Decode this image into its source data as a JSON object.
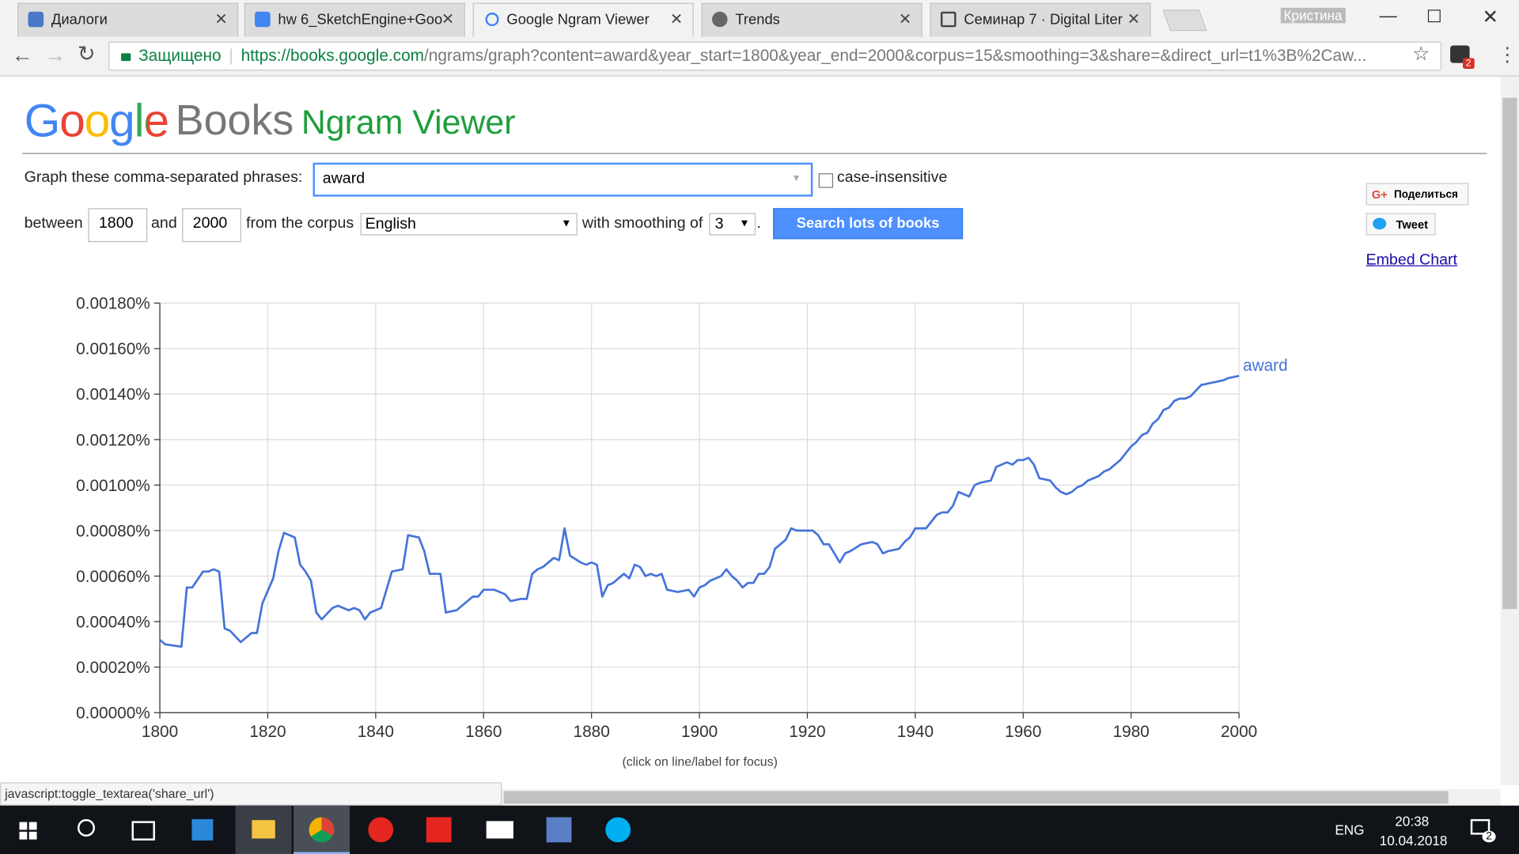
{
  "browser": {
    "tabs": [
      "Диалоги",
      "hw 6_SketchEngine+Goo",
      "Google Ngram Viewer",
      "Trends",
      "Семинар 7 · Digital Liter"
    ],
    "window_user": "Кристина",
    "secure_label": "Защищено",
    "url_host": "https://books.google.com",
    "url_rest": "/ngrams/graph?content=award&year_start=1800&year_end=2000&corpus=15&smoothing=3&share=&direct_url=t1%3B%2Caw...",
    "extension_badge": "2",
    "status_url": "javascript:toggle_textarea('share_url')"
  },
  "page": {
    "logo_google": "Google",
    "logo_books": "Books",
    "logo_ngram": "Ngram Viewer",
    "phrases_label": "Graph these comma-separated phrases:",
    "phrase": "award",
    "case_insensitive": "case-insensitive",
    "between": "between",
    "year_start": "1800",
    "and": "and",
    "year_end": "2000",
    "from_corpus": "from the corpus",
    "corpus": "English",
    "smoothing_label": "with smoothing of",
    "smoothing": "3",
    "period": ".",
    "search_button": "Search lots of books",
    "share_button": "Поделиться",
    "tweet_button": "Tweet",
    "embed_link": "Embed Chart",
    "hint": "(click on line/label for focus)"
  },
  "chart_data": {
    "type": "line",
    "x": [
      1800,
      1801,
      1804,
      1805,
      1806,
      1808,
      1809,
      1810,
      1811,
      1812,
      1813,
      1815,
      1817,
      1818,
      1819,
      1821,
      1822,
      1823,
      1825,
      1826,
      1827,
      1828,
      1829,
      1830,
      1832,
      1833,
      1835,
      1836,
      1837,
      1838,
      1839,
      1841,
      1842,
      1843,
      1845,
      1846,
      1848,
      1849,
      1850,
      1852,
      1853,
      1855,
      1857,
      1858,
      1859,
      1860,
      1862,
      1864,
      1865,
      1867,
      1868,
      1869,
      1870,
      1871,
      1872,
      1873,
      1874,
      1875,
      1876,
      1878,
      1879,
      1880,
      1881,
      1882,
      1883,
      1884,
      1886,
      1887,
      1888,
      1889,
      1890,
      1891,
      1892,
      1893,
      1894,
      1896,
      1898,
      1899,
      1900,
      1901,
      1902,
      1903,
      1904,
      1905,
      1906,
      1907,
      1908,
      1909,
      1910,
      1911,
      1912,
      1913,
      1914,
      1915,
      1916,
      1917,
      1918,
      1919,
      1920,
      1921,
      1922,
      1923,
      1924,
      1925,
      1926,
      1927,
      1928,
      1930,
      1932,
      1933,
      1934,
      1935,
      1937,
      1938,
      1939,
      1940,
      1941,
      1942,
      1943,
      1944,
      1945,
      1946,
      1947,
      1948,
      1949,
      1950,
      1951,
      1952,
      1954,
      1955,
      1956,
      1957,
      1958,
      1959,
      1960,
      1961,
      1962,
      1963,
      1965,
      1966,
      1967,
      1968,
      1969,
      1970,
      1971,
      1972,
      1973,
      1974,
      1975,
      1976,
      1977,
      1978,
      1979,
      1980,
      1981,
      1982,
      1983,
      1984,
      1985,
      1986,
      1987,
      1988,
      1989,
      1990,
      1991,
      1993,
      1995,
      1997,
      1998,
      2000
    ],
    "series": [
      {
        "name": "award",
        "color": "#4573d9",
        "values": [
          0.00032,
          0.0003,
          0.00029,
          0.00055,
          0.00055,
          0.00062,
          0.00062,
          0.00063,
          0.00062,
          0.00037,
          0.00036,
          0.00031,
          0.00035,
          0.00035,
          0.00048,
          0.00059,
          0.00071,
          0.00079,
          0.00077,
          0.00065,
          0.00062,
          0.00058,
          0.00044,
          0.00041,
          0.00046,
          0.00047,
          0.00045,
          0.00046,
          0.00045,
          0.00041,
          0.00044,
          0.00046,
          0.00054,
          0.00062,
          0.00063,
          0.00078,
          0.00077,
          0.00071,
          0.00061,
          0.00061,
          0.00044,
          0.00045,
          0.00049,
          0.00051,
          0.00051,
          0.00054,
          0.00054,
          0.00052,
          0.00049,
          0.0005,
          0.0005,
          0.00061,
          0.00063,
          0.00064,
          0.00066,
          0.00068,
          0.00067,
          0.00081,
          0.00069,
          0.00066,
          0.00065,
          0.00066,
          0.00065,
          0.00051,
          0.00056,
          0.00057,
          0.00061,
          0.00059,
          0.00065,
          0.00064,
          0.0006,
          0.00061,
          0.0006,
          0.00061,
          0.00054,
          0.00053,
          0.00054,
          0.00051,
          0.00055,
          0.00056,
          0.00058,
          0.00059,
          0.0006,
          0.00063,
          0.0006,
          0.00058,
          0.00055,
          0.00057,
          0.00057,
          0.00061,
          0.00061,
          0.00064,
          0.00072,
          0.00074,
          0.00076,
          0.00081,
          0.0008,
          0.0008,
          0.0008,
          0.0008,
          0.00078,
          0.00074,
          0.00074,
          0.0007,
          0.00066,
          0.0007,
          0.00071,
          0.00074,
          0.00075,
          0.00074,
          0.0007,
          0.00071,
          0.00072,
          0.00075,
          0.00077,
          0.00081,
          0.00081,
          0.00081,
          0.00084,
          0.00087,
          0.00088,
          0.00088,
          0.00091,
          0.00097,
          0.00096,
          0.00095,
          0.001,
          0.00101,
          0.00102,
          0.00108,
          0.00109,
          0.0011,
          0.00109,
          0.00111,
          0.00111,
          0.00112,
          0.00109,
          0.00103,
          0.00102,
          0.00099,
          0.00097,
          0.00096,
          0.00097,
          0.00099,
          0.001,
          0.00102,
          0.00103,
          0.00104,
          0.00106,
          0.00107,
          0.00109,
          0.00111,
          0.00114,
          0.00117,
          0.00119,
          0.00122,
          0.00123,
          0.00127,
          0.00129,
          0.00133,
          0.00134,
          0.00137,
          0.00138,
          0.00138,
          0.00139,
          0.00144,
          0.00145,
          0.00146,
          0.00147,
          0.00148
        ]
      }
    ],
    "xlim": [
      1800,
      2000
    ],
    "xticks": [
      1800,
      1820,
      1840,
      1860,
      1880,
      1900,
      1920,
      1940,
      1960,
      1980,
      2000
    ],
    "ylim": [
      0,
      0.0018
    ],
    "yticks": [
      {
        "value": 0,
        "label": "0.00000%"
      },
      {
        "value": 0.0002,
        "label": "0.00020%"
      },
      {
        "value": 0.0004,
        "label": "0.00040%"
      },
      {
        "value": 0.0006,
        "label": "0.00060%"
      },
      {
        "value": 0.0008,
        "label": "0.00080%"
      },
      {
        "value": 0.001,
        "label": "0.00100%"
      },
      {
        "value": 0.0012,
        "label": "0.00120%"
      },
      {
        "value": 0.0014,
        "label": "0.00140%"
      },
      {
        "value": 0.0016,
        "label": "0.00160%"
      },
      {
        "value": 0.0018,
        "label": "0.00180%"
      }
    ],
    "grid": true
  },
  "taskbar": {
    "language": "ENG",
    "time": "20:38",
    "date": "10.04.2018",
    "notifications": "2"
  }
}
